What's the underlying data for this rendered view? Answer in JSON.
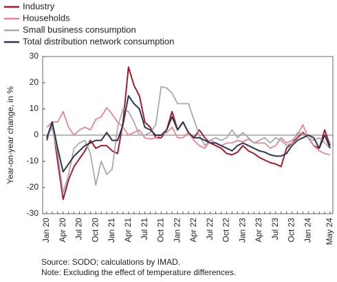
{
  "chart_data": {
    "type": "line",
    "y_label": "Year-on-year change, in %",
    "notes": [
      "Source: SODO; calculations by IMAD.",
      "Note: Excluding the effect of temperature differences."
    ],
    "categories": [
      "Jan 20",
      null,
      null,
      "Apr 20",
      null,
      null,
      "Jul 20",
      null,
      null,
      "Oct 20",
      null,
      null,
      "Jan 21",
      null,
      null,
      "Apr 21",
      null,
      null,
      "Jul 21",
      null,
      null,
      "Oct 21",
      null,
      null,
      "Jan 22",
      null,
      null,
      "Apr 22",
      null,
      null,
      "Jul 22",
      null,
      null,
      "Oct 22",
      null,
      null,
      "Jan 23",
      null,
      null,
      "Apr 23",
      null,
      null,
      "Jul 23",
      null,
      null,
      "Oct 23",
      null,
      null,
      "Jan 24",
      null,
      null,
      null,
      "May 24"
    ],
    "series": [
      {
        "name": "Industry",
        "color": "#a6192e",
        "values": [
          -2,
          5,
          -10,
          -24.5,
          -17,
          -12,
          -9,
          -6,
          -2,
          -5,
          -4,
          -4,
          -6,
          -7,
          5,
          26,
          19,
          15,
          5,
          3,
          -1,
          -1,
          2,
          9,
          2,
          5,
          1,
          -1,
          2,
          -1,
          -3,
          -4,
          -5,
          -7,
          -7.5,
          -6.5,
          -4,
          -6,
          -7,
          -8.5,
          -9.5,
          -10.5,
          -11,
          -12,
          -5,
          -3,
          -1,
          1,
          -1,
          -4,
          -5,
          2,
          -4
        ]
      },
      {
        "name": "Households",
        "color": "#e8868f",
        "values": [
          3,
          5,
          5,
          9,
          3,
          0,
          2,
          3,
          2,
          6,
          7,
          10.5,
          8,
          5,
          3,
          0,
          1,
          2,
          -1,
          -1.5,
          -1,
          0,
          1,
          3,
          -1,
          -1,
          1,
          -2,
          -4,
          -5,
          -2,
          -3,
          -4,
          -3,
          -3,
          -2,
          -2.5,
          -1.5,
          -3,
          -3,
          -3,
          -5,
          -4,
          -1,
          -3,
          -2,
          0,
          4,
          -1,
          -4,
          -6,
          -7,
          -7.5
        ]
      },
      {
        "name": "Small business consumption",
        "color": "#a7a9ac",
        "values": [
          -1,
          3,
          -7,
          -22,
          -15,
          -5,
          -3,
          -2,
          -7,
          -19,
          -10,
          -15,
          -13,
          3,
          10,
          9,
          5,
          0,
          0,
          1,
          4,
          18.5,
          18,
          16,
          12,
          12,
          12,
          6,
          0,
          -4,
          -2,
          -1,
          -2,
          -1,
          2,
          -1,
          1,
          -1,
          -3,
          -2,
          -1,
          -3,
          -1,
          -2,
          -4,
          -3,
          1,
          0.5,
          -1,
          -2,
          -1,
          -3,
          -5
        ]
      },
      {
        "name": "Total distribution network consumption",
        "color": "#2b3553",
        "values": [
          -1,
          5,
          -5,
          -14,
          -11,
          -8,
          -6,
          -4,
          -3,
          -2,
          -2,
          1,
          -2,
          -2,
          4,
          15,
          12,
          10,
          3,
          2,
          0,
          0,
          2,
          7,
          2,
          5,
          1,
          -1,
          -1,
          -2,
          -3,
          -3,
          -4,
          -5,
          -6,
          -4,
          -3,
          -4,
          -5,
          -6,
          -6.5,
          -7.5,
          -8,
          -8,
          -7,
          -4,
          -2,
          -1,
          0,
          -1,
          -5,
          0,
          -5
        ]
      }
    ],
    "ylim": [
      -30,
      30
    ],
    "yticks": [
      -30,
      -20,
      -10,
      0,
      10,
      20,
      30
    ]
  }
}
